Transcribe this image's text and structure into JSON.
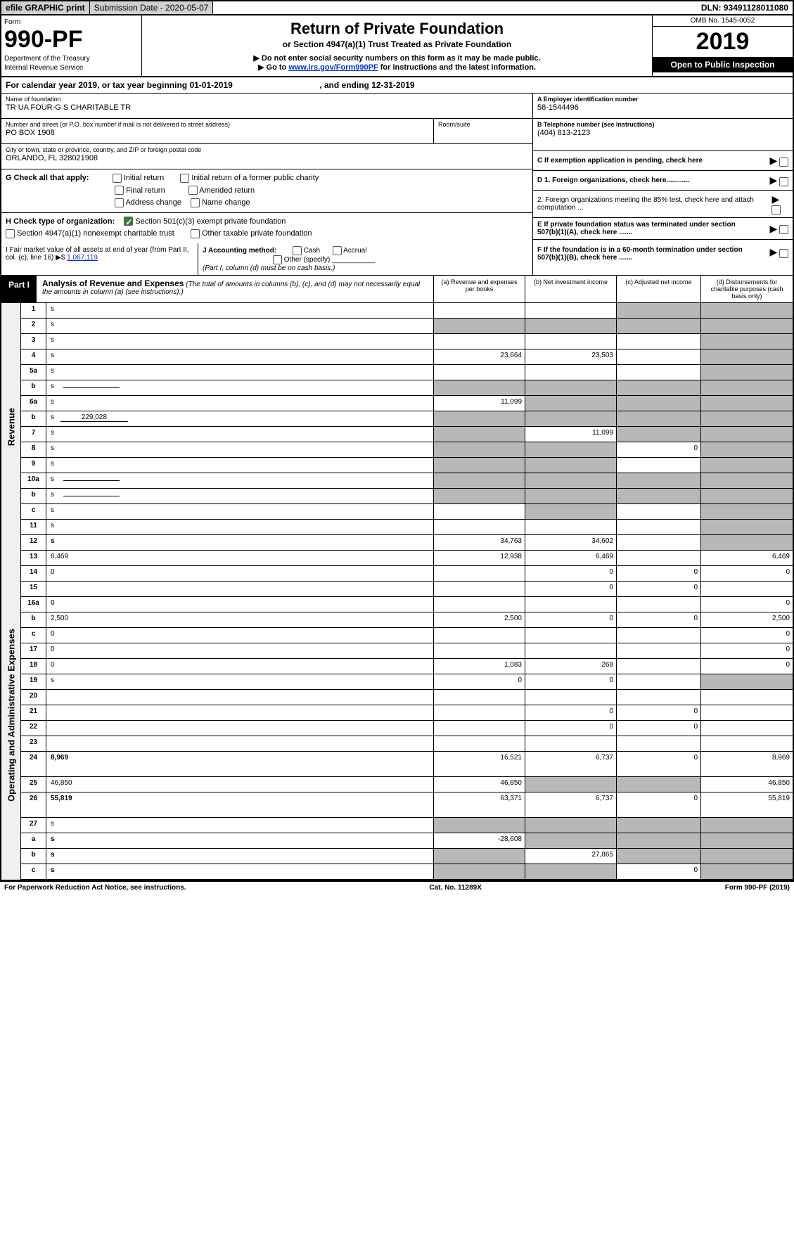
{
  "top": {
    "efile": "efile GRAPHIC print",
    "sub_label": "Submission Date - 2020-05-07",
    "dln": "DLN: 93491128011080"
  },
  "header": {
    "form_label": "Form",
    "form_number": "990-PF",
    "dept1": "Department of the Treasury",
    "dept2": "Internal Revenue Service",
    "title": "Return of Private Foundation",
    "subtitle": "or Section 4947(a)(1) Trust Treated as Private Foundation",
    "note1": "▶ Do not enter social security numbers on this form as it may be made public.",
    "note2_pre": "▶ Go to ",
    "note2_link": "www.irs.gov/Form990PF",
    "note2_post": " for instructions and the latest information.",
    "omb": "OMB No. 1545-0052",
    "year": "2019",
    "open": "Open to Public Inspection"
  },
  "cal_year": {
    "text_pre": "For calendar year 2019, or tax year beginning ",
    "begin": "01-01-2019",
    "mid": " , and ending ",
    "end": "12-31-2019"
  },
  "id": {
    "name_label": "Name of foundation",
    "name": "TR UA FOUR-G S CHARITABLE TR",
    "street_label": "Number and street (or P.O. box number if mail is not delivered to street address)",
    "street": "PO BOX 1908",
    "room_label": "Room/suite",
    "city_label": "City or town, state or province, country, and ZIP or foreign postal code",
    "city": "ORLANDO, FL  328021908",
    "a_label": "A Employer identification number",
    "a_value": "58-1544496",
    "b_label": "B Telephone number (see instructions)",
    "b_value": "(404) 813-2123",
    "c_label": "C If exemption application is pending, check here"
  },
  "g_checks": {
    "label": "G Check all that apply:",
    "opts": [
      "Initial return",
      "Initial return of a former public charity",
      "Final return",
      "Amended return",
      "Address change",
      "Name change"
    ]
  },
  "h_checks": {
    "label": "H Check type of organization:",
    "opt1": "Section 501(c)(3) exempt private foundation",
    "opt2": "Section 4947(a)(1) nonexempt charitable trust",
    "opt3": "Other taxable private foundation"
  },
  "d_block": {
    "d1": "D 1. Foreign organizations, check here............",
    "d2": "2. Foreign organizations meeting the 85% test, check here and attach computation ...",
    "e": "E  If private foundation status was terminated under section 507(b)(1)(A), check here .......",
    "f": "F  If the foundation is in a 60-month termination under section 507(b)(1)(B), check here ......."
  },
  "fmv": {
    "i_label": "I Fair market value of all assets at end of year (from Part II, col. (c), line 16) ▶$",
    "i_value": "1,067,119",
    "j_label": "J Accounting method:",
    "j_cash": "Cash",
    "j_accrual": "Accrual",
    "j_other": "Other (specify)",
    "j_note": "(Part I, column (d) must be on cash basis.)"
  },
  "part1": {
    "label": "Part I",
    "title": "Analysis of Revenue and Expenses",
    "subtitle": "(The total of amounts in columns (b), (c), and (d) may not necessarily equal the amounts in column (a) (see instructions).)",
    "col_a": "(a)  Revenue and expenses per books",
    "col_b": "(b)  Net investment income",
    "col_c": "(c)  Adjusted net income",
    "col_d": "(d)  Disbursements for charitable purposes (cash basis only)"
  },
  "revenue_label": "Revenue",
  "expense_label": "Operating and Administrative Expenses",
  "rows": [
    {
      "n": "1",
      "d": "s",
      "a": "",
      "b": "",
      "c": "s"
    },
    {
      "n": "2",
      "d": "s",
      "a": "s",
      "b": "s",
      "c": "s",
      "wrap": true
    },
    {
      "n": "3",
      "d": "s",
      "a": "",
      "b": "",
      "c": ""
    },
    {
      "n": "4",
      "d": "s",
      "a": "23,664",
      "b": "23,503",
      "c": ""
    },
    {
      "n": "5a",
      "d": "s",
      "a": "",
      "b": "",
      "c": ""
    },
    {
      "n": "b",
      "d": "s",
      "a": "s",
      "b": "s",
      "c": "s",
      "inline": true
    },
    {
      "n": "6a",
      "d": "s",
      "a": "11,099",
      "b": "s",
      "c": "s"
    },
    {
      "n": "b",
      "d": "s",
      "a": "s",
      "b": "s",
      "c": "s",
      "val": "229,028"
    },
    {
      "n": "7",
      "d": "s",
      "a": "s",
      "b": "11,099",
      "c": "s"
    },
    {
      "n": "8",
      "d": "s",
      "a": "s",
      "b": "s",
      "c": "0"
    },
    {
      "n": "9",
      "d": "s",
      "a": "s",
      "b": "s",
      "c": ""
    },
    {
      "n": "10a",
      "d": "s",
      "a": "s",
      "b": "s",
      "c": "s",
      "inline": true
    },
    {
      "n": "b",
      "d": "s",
      "a": "s",
      "b": "s",
      "c": "s",
      "inline": true
    },
    {
      "n": "c",
      "d": "s",
      "a": "",
      "b": "s",
      "c": ""
    },
    {
      "n": "11",
      "d": "s",
      "a": "",
      "b": "",
      "c": ""
    },
    {
      "n": "12",
      "d": "s",
      "a": "34,763",
      "b": "34,602",
      "c": "",
      "bold": true
    }
  ],
  "exp_rows": [
    {
      "n": "13",
      "d": "6,469",
      "a": "12,938",
      "b": "6,469",
      "c": ""
    },
    {
      "n": "14",
      "d": "0",
      "a": "",
      "b": "0",
      "c": "0"
    },
    {
      "n": "15",
      "d": "",
      "a": "",
      "b": "0",
      "c": "0"
    },
    {
      "n": "16a",
      "d": "0",
      "a": "",
      "b": "",
      "c": ""
    },
    {
      "n": "b",
      "d": "2,500",
      "a": "2,500",
      "b": "0",
      "c": "0"
    },
    {
      "n": "c",
      "d": "0",
      "a": "",
      "b": "",
      "c": ""
    },
    {
      "n": "17",
      "d": "0",
      "a": "",
      "b": "",
      "c": ""
    },
    {
      "n": "18",
      "d": "0",
      "a": "1,083",
      "b": "268",
      "c": ""
    },
    {
      "n": "19",
      "d": "s",
      "a": "0",
      "b": "0",
      "c": ""
    },
    {
      "n": "20",
      "d": "",
      "a": "",
      "b": "",
      "c": ""
    },
    {
      "n": "21",
      "d": "",
      "a": "",
      "b": "0",
      "c": "0"
    },
    {
      "n": "22",
      "d": "",
      "a": "",
      "b": "0",
      "c": "0"
    },
    {
      "n": "23",
      "d": "",
      "a": "",
      "b": "",
      "c": ""
    },
    {
      "n": "24",
      "d": "8,969",
      "a": "16,521",
      "b": "6,737",
      "c": "0",
      "bold": true,
      "tall": true
    },
    {
      "n": "25",
      "d": "46,850",
      "a": "46,850",
      "b": "s",
      "c": "s"
    },
    {
      "n": "26",
      "d": "55,819",
      "a": "63,371",
      "b": "6,737",
      "c": "0",
      "bold": true,
      "tall": true
    },
    {
      "n": "27",
      "d": "s",
      "a": "s",
      "b": "s",
      "c": "s"
    },
    {
      "n": "a",
      "d": "s",
      "a": "-28,608",
      "b": "s",
      "c": "s",
      "bold": true
    },
    {
      "n": "b",
      "d": "s",
      "a": "s",
      "b": "27,865",
      "c": "s",
      "bold": true
    },
    {
      "n": "c",
      "d": "s",
      "a": "s",
      "b": "s",
      "c": "0",
      "bold": true
    }
  ],
  "footer": {
    "left": "For Paperwork Reduction Act Notice, see instructions.",
    "center": "Cat. No. 11289X",
    "right": "Form 990-PF (2019)"
  },
  "colors": {
    "link": "#0033cc",
    "shaded": "#b8b8b8",
    "check_green": "#3b7a3b"
  }
}
